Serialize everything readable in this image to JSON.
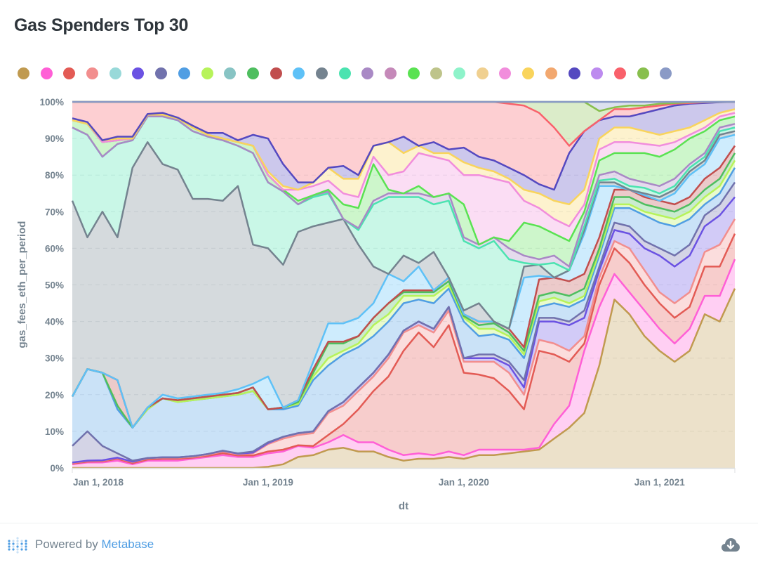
{
  "title": "Gas Spenders Top 30",
  "footer": {
    "powered_by": "Powered by ",
    "brand": "Metabase",
    "icons": {
      "logo": "metabase-logo-icon",
      "download": "cloud-download-icon"
    }
  },
  "chart_data": {
    "type": "area",
    "stacking": "percent",
    "title": "Gas Spenders Top 30",
    "xlabel": "dt",
    "ylabel": "gas_fees_eth_per_period",
    "ylim": [
      0,
      100
    ],
    "yticks": [
      "0%",
      "10%",
      "20%",
      "30%",
      "40%",
      "50%",
      "60%",
      "70%",
      "80%",
      "90%",
      "100%"
    ],
    "xticks": [
      {
        "label": "Jan 1, 2018",
        "index": 0
      },
      {
        "label": "Jan 1, 2019",
        "index": 13
      },
      {
        "label": "Jan 1, 2020",
        "index": 26
      },
      {
        "label": "Jan 1, 2021",
        "index": 39
      }
    ],
    "grid": true,
    "legend_position": "top",
    "n_periods": 45,
    "series_colors": [
      "#c09a4f",
      "#ff5fd6",
      "#e35b55",
      "#f28e8e",
      "#98d9d9",
      "#6b52e3",
      "#7172ad",
      "#509ee3",
      "#b7f35a",
      "#88c4c4",
      "#4ebe5f",
      "#c14e4e",
      "#5ec1f7",
      "#74838f",
      "#4be3b0",
      "#a989c5",
      "#c589b9",
      "#5ae252",
      "#bec48a",
      "#8ef3ca",
      "#f0d090",
      "#f18ddc",
      "#f9d45c",
      "#f2a86f",
      "#5549c0",
      "#bd8bef",
      "#f9616b",
      "#88bf4d",
      "#8a9ac6"
    ],
    "cumulative_boundaries": [
      {
        "series_index": 0,
        "values": [
          0,
          0,
          0,
          0,
          0,
          0,
          0,
          0,
          0,
          0,
          0,
          0,
          0,
          0.3,
          1,
          3,
          3.5,
          5,
          5.5,
          4.5,
          4.5,
          3,
          2,
          2.5,
          2.5,
          3,
          2.5,
          3.5,
          3.5,
          4,
          4.5,
          5,
          8,
          11,
          15,
          28,
          46,
          42,
          36,
          32,
          29,
          32,
          42,
          40,
          49
        ]
      },
      {
        "series_index": 1,
        "values": [
          1,
          1.5,
          1.5,
          2,
          1,
          2,
          2,
          2,
          2.5,
          3,
          3.5,
          3,
          3,
          4,
          4.5,
          6,
          5.5,
          7,
          9,
          7,
          7,
          5,
          3.5,
          4,
          3.5,
          4.5,
          3.5,
          5,
          5,
          5,
          5,
          5.5,
          12,
          17,
          32,
          44,
          53,
          48,
          43,
          38,
          34,
          38,
          47,
          47,
          57
        ]
      },
      {
        "series_index": 2,
        "values": [
          1.2,
          1.7,
          1.8,
          2.5,
          1.3,
          2.3,
          2.5,
          2.5,
          2.8,
          3.3,
          4,
          3.4,
          3.4,
          4.5,
          5,
          6.2,
          6,
          9,
          12,
          16,
          21,
          25,
          32,
          37,
          33,
          39,
          26,
          25.5,
          24.5,
          21,
          16,
          32,
          31,
          29,
          34,
          50,
          60,
          56,
          50,
          45,
          41,
          44,
          55,
          55,
          64
        ]
      },
      {
        "series_index": 3,
        "values": [
          1.4,
          1.9,
          2,
          2.7,
          1.6,
          2.6,
          2.8,
          2.8,
          3,
          3.6,
          4.5,
          3.7,
          4,
          6.5,
          8,
          9,
          9.5,
          15,
          17,
          21,
          25,
          30,
          37,
          39,
          37,
          43,
          29,
          29,
          29,
          26,
          20,
          35,
          34,
          32,
          36,
          52,
          62,
          60,
          54,
          48,
          45,
          48,
          59,
          61,
          68
        ]
      },
      {
        "series_index": 5,
        "values": [
          1.5,
          2,
          2.1,
          2.8,
          1.7,
          2.7,
          2.9,
          2.9,
          3.2,
          3.8,
          4.7,
          3.9,
          4.2,
          6.8,
          8.5,
          9.5,
          10,
          15.5,
          18,
          22,
          26,
          31,
          37.5,
          40,
          38,
          44,
          30,
          30,
          30,
          28,
          22,
          40,
          40,
          39,
          41,
          54,
          65,
          64,
          60,
          58,
          55,
          58,
          66,
          69,
          74
        ]
      },
      {
        "series_index": 6,
        "values": [
          6,
          10,
          6,
          4,
          2,
          2,
          2.3,
          2.3,
          2.5,
          3,
          4,
          4,
          4.5,
          7,
          8.5,
          9.5,
          10,
          15.5,
          18,
          22,
          26,
          31,
          37.5,
          40,
          38,
          44,
          30,
          31,
          31,
          29,
          24,
          41,
          41,
          40,
          43,
          55,
          67,
          66,
          62,
          60,
          58,
          61,
          69,
          72,
          78
        ]
      },
      {
        "series_index": 7,
        "values": [
          19.5,
          27,
          26,
          16,
          11,
          16,
          19,
          18,
          18.5,
          19,
          19.5,
          20,
          21,
          16,
          16,
          17,
          24,
          28,
          31,
          33,
          36,
          40,
          45,
          46,
          45,
          49,
          40,
          36,
          36.5,
          35,
          30,
          44,
          45,
          44,
          46,
          58,
          71,
          71,
          69,
          67,
          66,
          68,
          72,
          75,
          82
        ]
      },
      {
        "series_index": 8,
        "values": [
          19.5,
          27,
          26,
          17,
          11,
          16,
          19,
          18,
          18.5,
          19,
          19.5,
          20,
          21,
          16,
          16.5,
          17.5,
          25,
          30,
          32,
          34,
          39,
          42,
          47,
          47,
          47,
          50,
          41,
          38,
          38,
          36,
          31,
          45.5,
          46.5,
          45,
          47,
          59,
          72,
          72,
          70,
          69,
          68,
          70,
          74,
          77,
          84
        ]
      },
      {
        "series_index": 10,
        "values": [
          19.5,
          27,
          26,
          17,
          11,
          16.5,
          19,
          18.5,
          19,
          19.5,
          20,
          20.5,
          22,
          16,
          16.5,
          18,
          26,
          34,
          34,
          36,
          41,
          45,
          48,
          48,
          48,
          51,
          41.5,
          39,
          39.5,
          37,
          32,
          47,
          48,
          47,
          49,
          60,
          74,
          74,
          72,
          71,
          70,
          72,
          76,
          79,
          86
        ]
      },
      {
        "series_index": 11,
        "values": [
          19.5,
          27,
          26,
          24,
          11,
          16.5,
          19,
          18.5,
          19,
          19.5,
          20,
          20.5,
          22,
          16,
          16.5,
          18.5,
          27,
          34.5,
          34.5,
          36,
          41,
          45,
          48.5,
          48.5,
          48.5,
          52,
          42,
          40,
          40,
          38,
          33,
          51.5,
          52,
          51,
          53,
          63,
          76,
          76,
          74,
          73,
          72,
          74,
          79,
          82,
          88
        ]
      },
      {
        "series_index": 12,
        "values": [
          19.5,
          27,
          26,
          24,
          11,
          16.5,
          20,
          19,
          19.5,
          20,
          20.5,
          21.5,
          23,
          25,
          16,
          17,
          29,
          39.5,
          39.5,
          41,
          45,
          53,
          51,
          55,
          44,
          40,
          42,
          37,
          35,
          34,
          52,
          52.5,
          52,
          54,
          64,
          77,
          77,
          75,
          74.5,
          73,
          75,
          80,
          83,
          90,
          91
        ]
      },
      {
        "series_index": 13,
        "values": [
          73,
          63,
          70,
          63,
          82,
          89,
          83,
          81.5,
          73.5,
          73.5,
          73,
          77,
          61,
          60,
          55.5,
          64.5,
          66,
          67,
          68,
          61,
          55,
          52.5,
          58,
          56,
          59,
          51,
          43,
          45,
          39,
          35,
          55,
          55.5,
          50,
          52,
          65,
          78,
          78,
          76,
          75,
          74,
          76,
          81,
          84,
          91,
          92
        ]
      },
      {
        "series_index": 14,
        "values": [
          93,
          91,
          85,
          88.5,
          89.5,
          96,
          96,
          95,
          92,
          90.5,
          89.5,
          88,
          86,
          78,
          75.5,
          72,
          74,
          75,
          67,
          65,
          72,
          74,
          74,
          74,
          72,
          73,
          62,
          60,
          62,
          57,
          56,
          55,
          56,
          53,
          66,
          78.5,
          79,
          77,
          76.5,
          75,
          77,
          82,
          85,
          92,
          93
        ]
      },
      {
        "series_index": 15,
        "values": [
          93,
          91,
          85,
          88.5,
          89.5,
          96,
          96,
          95,
          92,
          90.5,
          89.5,
          88,
          86,
          78,
          75.5,
          72,
          74.5,
          75.5,
          67.5,
          65.5,
          73,
          75,
          75,
          75,
          74,
          75,
          63,
          61,
          63,
          60,
          58,
          57,
          58,
          55,
          68,
          80,
          81,
          79,
          78,
          77,
          79,
          83,
          86,
          93,
          94
        ]
      },
      {
        "series_index": 17,
        "values": [
          95,
          94,
          89,
          89.5,
          90,
          96.5,
          96.5,
          95.5,
          93,
          91,
          90,
          89,
          88,
          80,
          76,
          73,
          74.5,
          76,
          72,
          71,
          83,
          76,
          74,
          77,
          71,
          75,
          72,
          61,
          62,
          62,
          67,
          66,
          64,
          62,
          70,
          84,
          86,
          86,
          86,
          85,
          87,
          90,
          92,
          95,
          96
        ]
      },
      {
        "series_index": 21,
        "values": [
          95,
          94,
          89,
          89.5,
          90,
          96.5,
          96.5,
          95.5,
          93,
          91,
          90,
          89,
          88,
          80,
          76,
          76,
          77,
          78.5,
          75,
          74,
          85,
          80,
          81,
          86,
          85,
          84,
          80,
          80,
          79,
          78,
          73,
          71,
          68,
          66,
          72,
          87,
          89,
          89,
          88.5,
          88,
          89,
          91,
          93,
          96,
          97
        ]
      },
      {
        "series_index": 22,
        "values": [
          95,
          94,
          89.5,
          90,
          90,
          96.5,
          96.5,
          95.5,
          93,
          91,
          90,
          89,
          88,
          81,
          77,
          76,
          78,
          82,
          79,
          79,
          88,
          89,
          86,
          88,
          86,
          86,
          83.5,
          82,
          81,
          79,
          76,
          75,
          73,
          72,
          76,
          90,
          93,
          93,
          92,
          91,
          92,
          93,
          95,
          97,
          98
        ]
      },
      {
        "series_index": 24,
        "values": [
          95.5,
          94.5,
          89.5,
          90.5,
          90.5,
          96.7,
          97,
          95.7,
          93.5,
          91.5,
          91.5,
          89.5,
          91,
          90,
          83,
          78,
          77,
          79,
          82.5,
          80,
          79.5,
          89,
          90.5,
          87,
          89,
          87,
          87.5,
          85,
          84,
          82,
          80,
          77.5,
          76,
          86,
          92,
          95,
          96,
          96,
          97,
          98,
          99,
          99.5,
          99.7,
          99.9,
          100
        ]
      },
      {
        "series_index": 26,
        "values": [
          100,
          100,
          100,
          100,
          100,
          100,
          100,
          100,
          100,
          100,
          100,
          100,
          100,
          100,
          100,
          100,
          100,
          100,
          100,
          100,
          100,
          100,
          100,
          100,
          100,
          100,
          100,
          100,
          100,
          99.5,
          99,
          97,
          93,
          88,
          85,
          92,
          98,
          98,
          98.5,
          99,
          99.5,
          99.7,
          99.9,
          100,
          100
        ]
      },
      {
        "series_index": 27,
        "values": [
          100,
          100,
          100,
          100,
          100,
          100,
          100,
          100,
          100,
          100,
          100,
          100,
          100,
          100,
          100,
          100,
          100,
          99.5,
          99.5,
          99.5,
          99.5,
          99.5,
          99,
          99.5,
          100,
          100,
          100,
          100,
          100,
          100,
          100,
          100,
          100,
          100,
          100,
          97.5,
          98.5,
          99,
          99,
          99.5,
          99.7,
          99.9,
          100,
          100,
          100
        ]
      },
      {
        "series_index": 28,
        "values": [
          100,
          100,
          100,
          100,
          100,
          100,
          100,
          100,
          100,
          100,
          100,
          100,
          100,
          100,
          100,
          100,
          100,
          100,
          100,
          100,
          100,
          100,
          100,
          100,
          100,
          100,
          100,
          100,
          100,
          100,
          100,
          100,
          100,
          100,
          100,
          100,
          100,
          100,
          100,
          100,
          100,
          100,
          100,
          100,
          100
        ]
      }
    ]
  }
}
